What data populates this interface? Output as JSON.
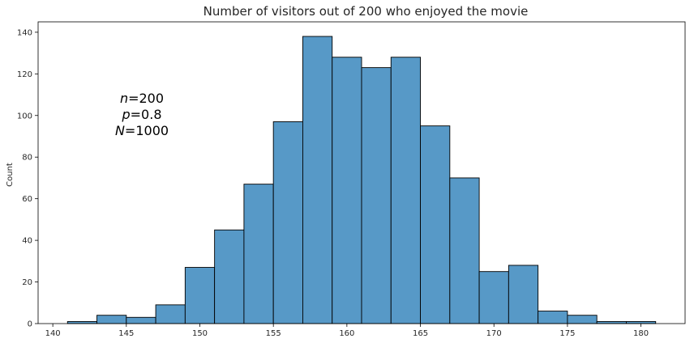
{
  "chart_data": {
    "type": "bar",
    "title": "Number of visitors out of 200 who enjoyed the movie",
    "xlabel": "",
    "ylabel": "Count",
    "bin_width": 2,
    "bin_edges": [
      141,
      143,
      145,
      147,
      149,
      151,
      153,
      155,
      157,
      159,
      161,
      163,
      165,
      167,
      169,
      171,
      173,
      175,
      177,
      179,
      181
    ],
    "values": [
      1,
      4,
      3,
      9,
      27,
      45,
      67,
      97,
      138,
      128,
      123,
      128,
      95,
      70,
      25,
      28,
      6,
      4,
      1,
      1
    ],
    "xlim": [
      139,
      183
    ],
    "ylim": [
      0,
      145
    ],
    "x_ticks": [
      140,
      145,
      150,
      155,
      160,
      165,
      170,
      175,
      180
    ],
    "y_ticks": [
      0,
      20,
      40,
      60,
      80,
      100,
      120,
      140
    ],
    "grid": false,
    "colors": {
      "bar_fill": "#5799C7",
      "bar_edge": "#000000"
    },
    "annotation": [
      {
        "symbol": "n",
        "value": "=200"
      },
      {
        "symbol": "p",
        "value": "=0.8"
      },
      {
        "symbol": "N",
        "value": "=1000"
      }
    ]
  }
}
